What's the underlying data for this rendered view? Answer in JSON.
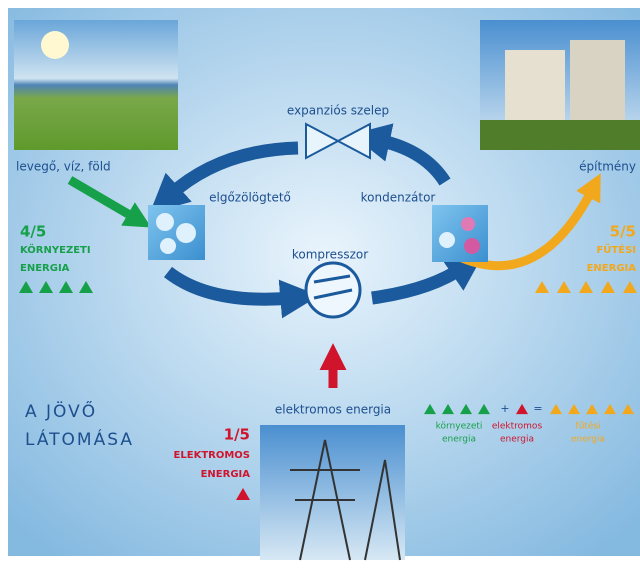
{
  "sources": {
    "label": "levegő, víz, föld"
  },
  "building": {
    "label": "építmény"
  },
  "valve": {
    "label": "expanziós szelep"
  },
  "evaporator": {
    "label": "elgőzölögtető"
  },
  "condenser": {
    "label": "kondenzátor"
  },
  "compressor": {
    "label": "kompresszor"
  },
  "electric_input": {
    "label": "elektromos energia"
  },
  "environmental": {
    "fraction": "4/5",
    "lines": [
      "KÖRNYEZETI",
      "ENERGIA"
    ]
  },
  "heating": {
    "fraction": "5/5",
    "lines": [
      "FŰTÉSI",
      "ENERGIA"
    ]
  },
  "electric": {
    "fraction": "1/5",
    "lines": [
      "ELEKTROMOS",
      "ENERGIA"
    ]
  },
  "vision": {
    "lines": [
      "A JÖVŐ",
      "LÁTOMÁSA"
    ]
  },
  "equation": {
    "plus": "+",
    "equals": "=",
    "terms": [
      [
        "környezeti",
        "energia"
      ],
      [
        "elektromos",
        "energia"
      ],
      [
        "fűtési",
        "energia"
      ]
    ]
  }
}
